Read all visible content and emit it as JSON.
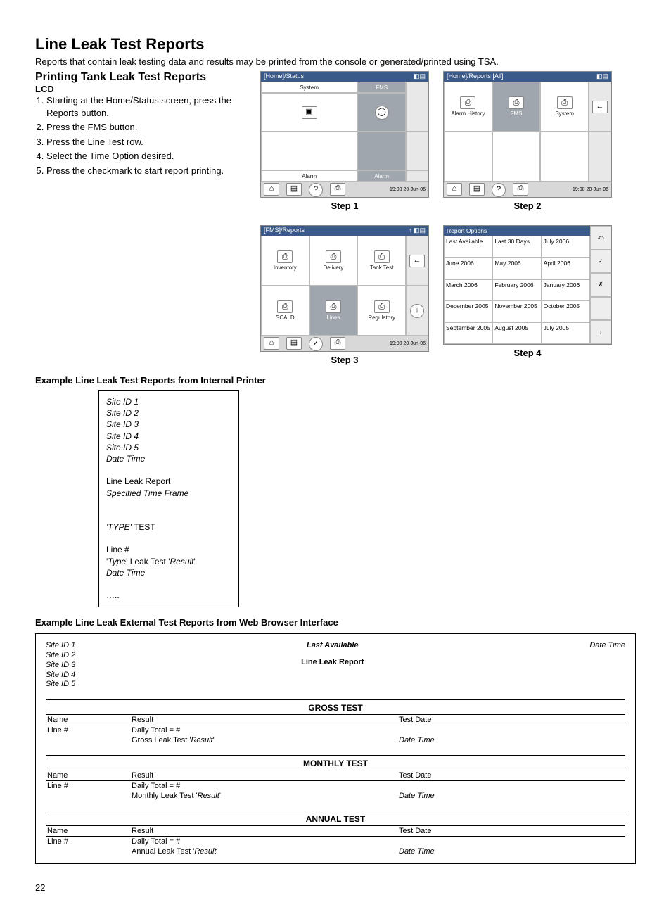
{
  "title": "Line Leak Test Reports",
  "intro": "Reports that contain leak testing data and results may be printed from the console or generated/printed using TSA.",
  "subtitle": "Printing Tank Leak Test Reports",
  "lcd": "LCD",
  "steps": [
    "Starting at the Home/Status screen, press the Reports button.",
    "Press the FMS button.",
    "Press the Line Test row.",
    "Select the Time Option desired.",
    "Press the checkmark to start report printing."
  ],
  "screens": {
    "s1": {
      "breadcrumb": "[Home]/Status",
      "tabs": {
        "system": "System",
        "fms": "FMS"
      },
      "alarm": "Alarm",
      "timestamp": "19:00\n20-Jun-06",
      "caption": "Step 1"
    },
    "s2": {
      "breadcrumb": "[Home]/Reports [All]",
      "items": {
        "alarm_history": "Alarm History",
        "fms": "FMS",
        "system": "System"
      },
      "timestamp": "19:00\n20-Jun-06",
      "caption": "Step 2"
    },
    "s3": {
      "breadcrumb": "[FMS]/Reports",
      "items": {
        "inventory": "Inventory",
        "delivery": "Delivery",
        "tank_test": "Tank Test",
        "scald": "SCALD",
        "lines": "Lines",
        "regulatory": "Regulatory"
      },
      "timestamp": "19:00\n20-Jun-06",
      "caption": "Step 3"
    },
    "s4": {
      "title": "Report Options",
      "options": [
        "Last Available",
        "Last 30 Days",
        "July 2006",
        "June 2006",
        "May 2006",
        "April 2006",
        "March 2006",
        "February 2006",
        "January 2006",
        "December 2005",
        "November 2005",
        "October 2005",
        "September 2005",
        "August 2005",
        "July 2005"
      ],
      "caption": "Step 4"
    }
  },
  "example_internal_h": "Example Line Leak Test Reports from Internal Printer",
  "printer": {
    "site1": "Site ID 1",
    "site2": "Site ID 2",
    "site3": "Site ID 3",
    "site4": "Site ID 4",
    "site5": "Site ID 5",
    "datetime": "Date    Time",
    "report_name": "Line Leak Report",
    "timeframe": "Specified Time Frame",
    "type_test": "'TYPE' TEST",
    "line_no": "Line #",
    "type_result": "'Type' Leak Test 'Result'",
    "datetime2": "Date    Time",
    "dots": "….."
  },
  "example_web_h": "Example Line Leak External Test Reports from Web Browser Interface",
  "web": {
    "site1": "Site ID 1",
    "site2": "Site ID 2",
    "site3": "Site ID 3",
    "site4": "Site ID 4",
    "site5": "Site ID 5",
    "last_avail": "Last Available",
    "report_name": "Line Leak Report",
    "datetime": "Date  Time",
    "tests": [
      {
        "title": "GROSS TEST",
        "name": "Name",
        "result_h": "Result",
        "testdate_h": "Test Date",
        "line": "Line #",
        "daily": "Daily Total = #",
        "leak": "Gross Leak Test 'Result'",
        "dt": "Date    Time"
      },
      {
        "title": "MONTHLY TEST",
        "name": "Name",
        "result_h": "Result",
        "testdate_h": "Test Date",
        "line": "Line #",
        "daily": "Daily Total = #",
        "leak": "Monthly Leak Test 'Result'",
        "dt": "Date    Time"
      },
      {
        "title": "ANNUAL TEST",
        "name": "Name",
        "result_h": "Result",
        "testdate_h": "Test Date",
        "line": "Line #",
        "daily": "Daily Total = #",
        "leak": "Annual Leak Test 'Result'",
        "dt": "Date    Time"
      }
    ]
  },
  "page_number": "22"
}
